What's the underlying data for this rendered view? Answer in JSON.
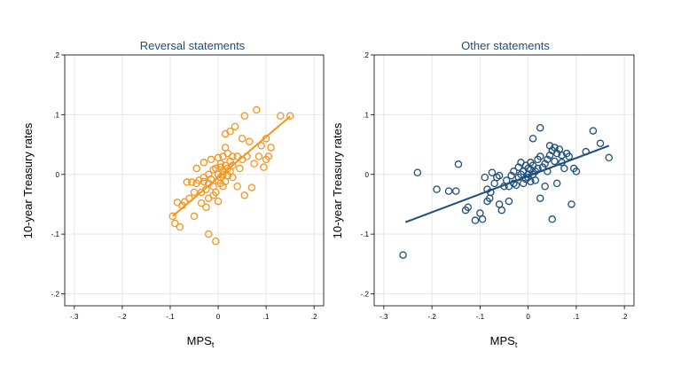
{
  "chart_data": [
    {
      "type": "scatter",
      "title": "Reversal statements",
      "xlabel": "MPS",
      "xlabel_sub": "t",
      "ylabel": "10-year Treasury rates",
      "xlim": [
        -0.32,
        0.22
      ],
      "ylim": [
        -0.22,
        0.2
      ],
      "xticks": [
        -0.3,
        -0.2,
        -0.1,
        0,
        0.1,
        0.2
      ],
      "xtick_labels": [
        "-.3",
        "-.2",
        "-.1",
        "0",
        ".1",
        ".2"
      ],
      "yticks": [
        -0.2,
        -0.1,
        0,
        0.1,
        0.2
      ],
      "ytick_labels": [
        "-.2",
        "-.1",
        "0",
        ".1",
        ".2"
      ],
      "grid": true,
      "color": "#f7941d",
      "fit_line": {
        "x": [
          -0.095,
          0.15
        ],
        "y": [
          -0.07,
          0.097
        ]
      },
      "points": [
        [
          -0.095,
          -0.07
        ],
        [
          -0.09,
          -0.082
        ],
        [
          -0.085,
          -0.047
        ],
        [
          -0.08,
          -0.088
        ],
        [
          -0.075,
          -0.052
        ],
        [
          -0.07,
          -0.046
        ],
        [
          -0.065,
          -0.013
        ],
        [
          -0.06,
          -0.04
        ],
        [
          -0.055,
          -0.013
        ],
        [
          -0.05,
          -0.07
        ],
        [
          -0.05,
          -0.03
        ],
        [
          -0.045,
          0.01
        ],
        [
          -0.045,
          -0.015
        ],
        [
          -0.04,
          -0.01
        ],
        [
          -0.035,
          -0.048
        ],
        [
          -0.035,
          -0.03
        ],
        [
          -0.03,
          0.02
        ],
        [
          -0.03,
          -0.005
        ],
        [
          -0.03,
          -0.012
        ],
        [
          -0.025,
          -0.055
        ],
        [
          -0.025,
          -0.025
        ],
        [
          -0.02,
          -0.04
        ],
        [
          -0.02,
          -0.015
        ],
        [
          -0.02,
          0.0
        ],
        [
          -0.02,
          -0.1
        ],
        [
          -0.015,
          0.025
        ],
        [
          -0.015,
          -0.008
        ],
        [
          -0.01,
          -0.035
        ],
        [
          -0.01,
          -0.02
        ],
        [
          -0.01,
          0.008
        ],
        [
          -0.005,
          -0.112
        ],
        [
          -0.005,
          -0.03
        ],
        [
          -0.005,
          0.01
        ],
        [
          0.0,
          0.028
        ],
        [
          0.0,
          -0.01
        ],
        [
          0.0,
          -0.045
        ],
        [
          0.0,
          0.0
        ],
        [
          0.005,
          0.018
        ],
        [
          0.005,
          -0.005
        ],
        [
          0.005,
          0.012
        ],
        [
          0.005,
          -0.015
        ],
        [
          0.01,
          0.03
        ],
        [
          0.01,
          0.0
        ],
        [
          0.01,
          -0.02
        ],
        [
          0.01,
          0.005
        ],
        [
          0.015,
          0.045
        ],
        [
          0.015,
          0.068
        ],
        [
          0.015,
          0.015
        ],
        [
          0.015,
          -0.012
        ],
        [
          0.02,
          0.01
        ],
        [
          0.02,
          0.035
        ],
        [
          0.02,
          -0.002
        ],
        [
          0.025,
          0.022
        ],
        [
          0.025,
          0.072
        ],
        [
          0.025,
          0.005
        ],
        [
          0.03,
          -0.005
        ],
        [
          0.03,
          0.03
        ],
        [
          0.03,
          0.015
        ],
        [
          0.035,
          0.08
        ],
        [
          0.04,
          0.03
        ],
        [
          0.04,
          -0.02
        ],
        [
          0.045,
          0.01
        ],
        [
          0.05,
          0.06
        ],
        [
          0.05,
          0.025
        ],
        [
          0.055,
          -0.035
        ],
        [
          0.055,
          0.098
        ],
        [
          0.06,
          0.03
        ],
        [
          0.065,
          0.055
        ],
        [
          0.07,
          -0.022
        ],
        [
          0.075,
          0.018
        ],
        [
          0.08,
          0.108
        ],
        [
          0.085,
          0.03
        ],
        [
          0.09,
          0.048
        ],
        [
          0.095,
          0.012
        ],
        [
          0.1,
          0.025
        ],
        [
          0.1,
          0.06
        ],
        [
          0.105,
          0.03
        ],
        [
          0.11,
          0.045
        ],
        [
          0.13,
          0.098
        ],
        [
          0.15,
          0.098
        ]
      ]
    },
    {
      "type": "scatter",
      "title": "Other statements",
      "xlabel": "MPS",
      "xlabel_sub": "t",
      "ylabel": "10-year Treasury rates",
      "xlim": [
        -0.32,
        0.22
      ],
      "ylim": [
        -0.22,
        0.2
      ],
      "xticks": [
        -0.3,
        -0.2,
        -0.1,
        0,
        0.1,
        0.2
      ],
      "xtick_labels": [
        "-.3",
        "-.2",
        "-.1",
        "0",
        ".1",
        ".2"
      ],
      "yticks": [
        -0.2,
        -0.1,
        0,
        0.1,
        0.2
      ],
      "ytick_labels": [
        "-.2",
        "-.1",
        "0",
        ".1",
        ".2"
      ],
      "grid": true,
      "color": "#1f4e79",
      "fit_line": {
        "x": [
          -0.255,
          0.168
        ],
        "y": [
          -0.08,
          0.048
        ]
      },
      "points": [
        [
          -0.26,
          -0.135
        ],
        [
          -0.23,
          0.003
        ],
        [
          -0.19,
          -0.025
        ],
        [
          -0.165,
          -0.028
        ],
        [
          -0.15,
          -0.028
        ],
        [
          -0.145,
          0.017
        ],
        [
          -0.13,
          -0.06
        ],
        [
          -0.125,
          -0.055
        ],
        [
          -0.11,
          -0.077
        ],
        [
          -0.1,
          -0.065
        ],
        [
          -0.095,
          -0.075
        ],
        [
          -0.09,
          -0.005
        ],
        [
          -0.085,
          -0.045
        ],
        [
          -0.085,
          -0.025
        ],
        [
          -0.08,
          -0.04
        ],
        [
          -0.078,
          -0.03
        ],
        [
          -0.075,
          0.003
        ],
        [
          -0.07,
          -0.015
        ],
        [
          -0.065,
          -0.005
        ],
        [
          -0.06,
          -0.05
        ],
        [
          -0.06,
          -0.002
        ],
        [
          -0.055,
          -0.06
        ],
        [
          -0.05,
          -0.02
        ],
        [
          -0.045,
          -0.01
        ],
        [
          -0.04,
          -0.045
        ],
        [
          -0.04,
          -0.02
        ],
        [
          -0.035,
          -0.002
        ],
        [
          -0.03,
          0.005
        ],
        [
          -0.03,
          -0.015
        ],
        [
          -0.025,
          -0.018
        ],
        [
          -0.02,
          0.012
        ],
        [
          -0.02,
          -0.005
        ],
        [
          -0.015,
          0.02
        ],
        [
          -0.015,
          0.0
        ],
        [
          -0.01,
          -0.015
        ],
        [
          -0.01,
          0.005
        ],
        [
          -0.005,
          0.015
        ],
        [
          -0.005,
          -0.008
        ],
        [
          0.0,
          0.01
        ],
        [
          0.0,
          0.0
        ],
        [
          0.0,
          -0.005
        ],
        [
          0.005,
          0.008
        ],
        [
          0.005,
          0.02
        ],
        [
          0.005,
          -0.012
        ],
        [
          0.01,
          0.0
        ],
        [
          0.01,
          0.015
        ],
        [
          0.01,
          0.06
        ],
        [
          0.015,
          0.005
        ],
        [
          0.015,
          -0.01
        ],
        [
          0.02,
          0.025
        ],
        [
          0.02,
          0.01
        ],
        [
          0.025,
          -0.04
        ],
        [
          0.025,
          0.03
        ],
        [
          0.025,
          0.078
        ],
        [
          0.03,
          0.012
        ],
        [
          0.035,
          0.018
        ],
        [
          0.035,
          -0.02
        ],
        [
          0.04,
          0.005
        ],
        [
          0.04,
          0.025
        ],
        [
          0.045,
          0.048
        ],
        [
          0.045,
          0.032
        ],
        [
          0.05,
          0.04
        ],
        [
          0.05,
          -0.075
        ],
        [
          0.055,
          0.022
        ],
        [
          0.055,
          0.045
        ],
        [
          0.06,
          -0.015
        ],
        [
          0.06,
          0.035
        ],
        [
          0.065,
          0.042
        ],
        [
          0.07,
          0.032
        ],
        [
          0.07,
          0.02
        ],
        [
          0.075,
          0.01
        ],
        [
          0.08,
          0.035
        ],
        [
          0.085,
          0.03
        ],
        [
          0.09,
          -0.05
        ],
        [
          0.095,
          0.01
        ],
        [
          0.1,
          0.005
        ],
        [
          0.12,
          0.038
        ],
        [
          0.135,
          0.073
        ],
        [
          0.15,
          0.052
        ],
        [
          0.168,
          0.028
        ]
      ]
    }
  ]
}
